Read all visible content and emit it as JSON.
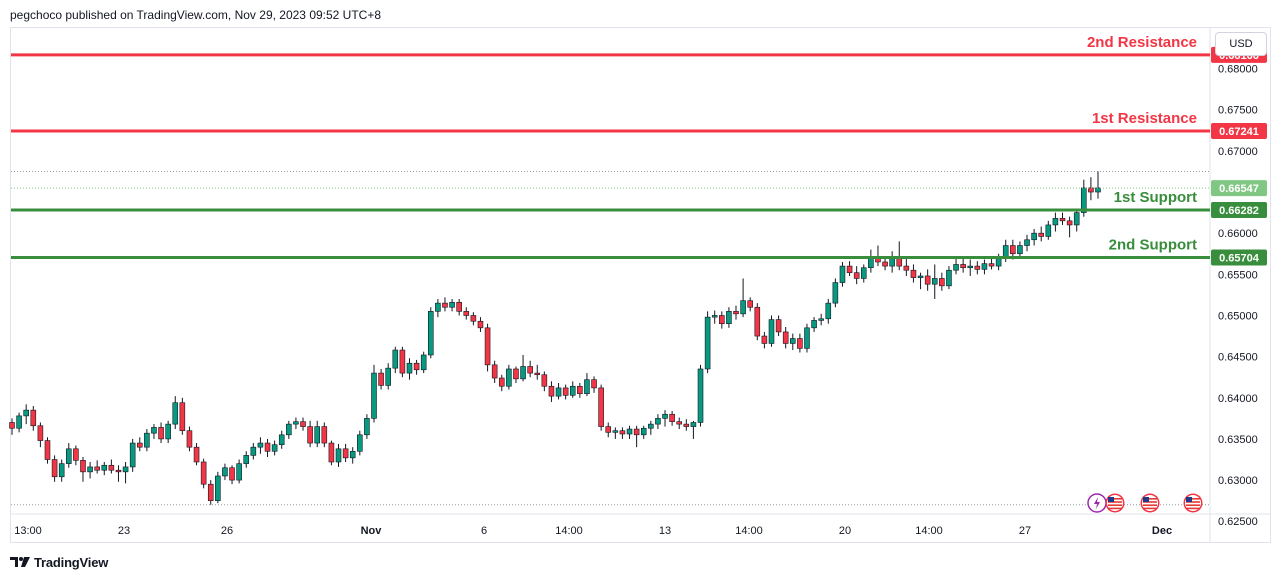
{
  "header": {
    "publisher_line": "pegchoco published on TradingView.com, Nov 29, 2023 09:52 UTC+8"
  },
  "currency_button": "USD",
  "footer": {
    "brand": "TradingView"
  },
  "colors": {
    "resistance": "#f23645",
    "support": "#388e3c",
    "up": "#089981",
    "down": "#f23645",
    "current_price": "#81c784"
  },
  "levels": [
    {
      "id": "2nd-resistance",
      "label": "2nd Resistance",
      "value": 0.68166,
      "price_tag": "0.68166",
      "kind": "resistance"
    },
    {
      "id": "1st-resistance",
      "label": "1st Resistance",
      "value": 0.67241,
      "price_tag": "0.67241",
      "kind": "resistance"
    },
    {
      "id": "1st-support",
      "label": "1st Support",
      "value": 0.66282,
      "price_tag": "0.66282",
      "kind": "support"
    },
    {
      "id": "2nd-support",
      "label": "2nd Support",
      "value": 0.65704,
      "price_tag": "0.65704",
      "kind": "support"
    }
  ],
  "current_price": {
    "value": 0.66547,
    "tag": "0.66547"
  },
  "chart_data": {
    "type": "candlestick",
    "y_axis": {
      "ticks": [
        "0.68000",
        "0.67500",
        "0.67000",
        "0.66500",
        "0.66000",
        "0.65500",
        "0.65000",
        "0.64500",
        "0.64000",
        "0.63500",
        "0.63000",
        "0.62500"
      ],
      "ylim": [
        0.6243,
        0.6859
      ]
    },
    "x_axis": {
      "ticks": [
        "13:00",
        "23",
        "26",
        "Nov",
        "6",
        "14:00",
        "13",
        "14:00",
        "20",
        "14:00",
        "27",
        "Dec"
      ]
    },
    "grid": false,
    "candles": [
      [
        0.637,
        0.6375,
        0.6355,
        0.6363
      ],
      [
        0.6363,
        0.6382,
        0.6358,
        0.6378
      ],
      [
        0.6378,
        0.6392,
        0.6368,
        0.6385
      ],
      [
        0.6385,
        0.639,
        0.636,
        0.6366
      ],
      [
        0.6366,
        0.637,
        0.634,
        0.6348
      ],
      [
        0.6348,
        0.6352,
        0.632,
        0.6325
      ],
      [
        0.6325,
        0.633,
        0.6298,
        0.6304
      ],
      [
        0.6304,
        0.6325,
        0.6298,
        0.632
      ],
      [
        0.632,
        0.6345,
        0.6315,
        0.6338
      ],
      [
        0.6338,
        0.6342,
        0.6318,
        0.6324
      ],
      [
        0.6324,
        0.6328,
        0.6298,
        0.631
      ],
      [
        0.631,
        0.6322,
        0.6302,
        0.6316
      ],
      [
        0.6316,
        0.6324,
        0.6308,
        0.6312
      ],
      [
        0.6312,
        0.6322,
        0.6306,
        0.6318
      ],
      [
        0.6318,
        0.6325,
        0.6308,
        0.6312
      ],
      [
        0.6312,
        0.6318,
        0.6298,
        0.631
      ],
      [
        0.631,
        0.6322,
        0.6296,
        0.6316
      ],
      [
        0.6316,
        0.635,
        0.631,
        0.6345
      ],
      [
        0.6345,
        0.6352,
        0.6335,
        0.634
      ],
      [
        0.634,
        0.6362,
        0.6335,
        0.6357
      ],
      [
        0.6357,
        0.6368,
        0.635,
        0.6364
      ],
      [
        0.6364,
        0.637,
        0.6345,
        0.635
      ],
      [
        0.635,
        0.6372,
        0.6345,
        0.6368
      ],
      [
        0.6368,
        0.6402,
        0.6362,
        0.6394
      ],
      [
        0.6394,
        0.64,
        0.6355,
        0.636
      ],
      [
        0.636,
        0.6365,
        0.6335,
        0.634
      ],
      [
        0.634,
        0.6345,
        0.6318,
        0.6322
      ],
      [
        0.6322,
        0.6326,
        0.629,
        0.6295
      ],
      [
        0.6295,
        0.63,
        0.627,
        0.6275
      ],
      [
        0.6275,
        0.631,
        0.6272,
        0.6305
      ],
      [
        0.6305,
        0.632,
        0.63,
        0.6315
      ],
      [
        0.6315,
        0.6318,
        0.6295,
        0.63
      ],
      [
        0.63,
        0.6325,
        0.6296,
        0.632
      ],
      [
        0.632,
        0.6335,
        0.6315,
        0.633
      ],
      [
        0.633,
        0.6345,
        0.6325,
        0.634
      ],
      [
        0.634,
        0.6352,
        0.6332,
        0.6345
      ],
      [
        0.6345,
        0.635,
        0.6328,
        0.6335
      ],
      [
        0.6335,
        0.6348,
        0.633,
        0.6343
      ],
      [
        0.6343,
        0.636,
        0.6338,
        0.6355
      ],
      [
        0.6355,
        0.6372,
        0.635,
        0.6368
      ],
      [
        0.6368,
        0.6376,
        0.6362,
        0.6371
      ],
      [
        0.6371,
        0.6376,
        0.636,
        0.6365
      ],
      [
        0.6365,
        0.6372,
        0.634,
        0.6345
      ],
      [
        0.6345,
        0.6372,
        0.634,
        0.6365
      ],
      [
        0.6365,
        0.637,
        0.634,
        0.6345
      ],
      [
        0.6345,
        0.6348,
        0.6318,
        0.6322
      ],
      [
        0.6322,
        0.6344,
        0.6316,
        0.6338
      ],
      [
        0.6338,
        0.6344,
        0.6322,
        0.6327
      ],
      [
        0.6327,
        0.634,
        0.632,
        0.6335
      ],
      [
        0.6335,
        0.636,
        0.633,
        0.6355
      ],
      [
        0.6355,
        0.638,
        0.635,
        0.6375
      ],
      [
        0.6375,
        0.644,
        0.637,
        0.643
      ],
      [
        0.643,
        0.6435,
        0.641,
        0.6415
      ],
      [
        0.6415,
        0.6442,
        0.641,
        0.6436
      ],
      [
        0.6436,
        0.6462,
        0.643,
        0.6458
      ],
      [
        0.6458,
        0.6462,
        0.6425,
        0.643
      ],
      [
        0.643,
        0.6448,
        0.6422,
        0.6442
      ],
      [
        0.6442,
        0.6446,
        0.6428,
        0.6434
      ],
      [
        0.6434,
        0.6456,
        0.643,
        0.6452
      ],
      [
        0.6452,
        0.651,
        0.6448,
        0.6505
      ],
      [
        0.6505,
        0.652,
        0.6498,
        0.6515
      ],
      [
        0.6515,
        0.6522,
        0.6505,
        0.651
      ],
      [
        0.651,
        0.652,
        0.6505,
        0.6516
      ],
      [
        0.6516,
        0.652,
        0.65,
        0.6505
      ],
      [
        0.6505,
        0.651,
        0.6495,
        0.65
      ],
      [
        0.65,
        0.6504,
        0.6488,
        0.6493
      ],
      [
        0.6493,
        0.6498,
        0.648,
        0.6485
      ],
      [
        0.6485,
        0.649,
        0.6432,
        0.644
      ],
      [
        0.644,
        0.6445,
        0.6418,
        0.6424
      ],
      [
        0.6424,
        0.6428,
        0.6408,
        0.6414
      ],
      [
        0.6414,
        0.644,
        0.641,
        0.6435
      ],
      [
        0.6435,
        0.6438,
        0.6418,
        0.6423
      ],
      [
        0.6423,
        0.6452,
        0.642,
        0.6438
      ],
      [
        0.6438,
        0.6445,
        0.6425,
        0.643
      ],
      [
        0.643,
        0.644,
        0.6422,
        0.6428
      ],
      [
        0.6428,
        0.6432,
        0.6408,
        0.6414
      ],
      [
        0.6414,
        0.642,
        0.6395,
        0.6402
      ],
      [
        0.6402,
        0.6418,
        0.6398,
        0.6412
      ],
      [
        0.6412,
        0.6416,
        0.6398,
        0.6403
      ],
      [
        0.6403,
        0.642,
        0.64,
        0.6414
      ],
      [
        0.6414,
        0.6418,
        0.64,
        0.6405
      ],
      [
        0.6405,
        0.643,
        0.6402,
        0.6422
      ],
      [
        0.6422,
        0.6426,
        0.6406,
        0.6412
      ],
      [
        0.6412,
        0.6416,
        0.636,
        0.6365
      ],
      [
        0.6365,
        0.637,
        0.6352,
        0.6358
      ],
      [
        0.6358,
        0.6364,
        0.635,
        0.636
      ],
      [
        0.636,
        0.6364,
        0.635,
        0.6356
      ],
      [
        0.6356,
        0.6366,
        0.635,
        0.6362
      ],
      [
        0.6362,
        0.6366,
        0.634,
        0.6355
      ],
      [
        0.6355,
        0.6366,
        0.635,
        0.6363
      ],
      [
        0.6363,
        0.6372,
        0.6355,
        0.6368
      ],
      [
        0.6368,
        0.638,
        0.6362,
        0.6375
      ],
      [
        0.6375,
        0.6385,
        0.6365,
        0.638
      ],
      [
        0.638,
        0.6384,
        0.6366,
        0.6371
      ],
      [
        0.6371,
        0.6376,
        0.6362,
        0.6368
      ],
      [
        0.6368,
        0.6374,
        0.636,
        0.6365
      ],
      [
        0.6365,
        0.6372,
        0.635,
        0.637
      ],
      [
        0.637,
        0.644,
        0.6365,
        0.6435
      ],
      [
        0.6435,
        0.6505,
        0.643,
        0.6498
      ],
      [
        0.6498,
        0.6506,
        0.649,
        0.65
      ],
      [
        0.65,
        0.6505,
        0.6484,
        0.649
      ],
      [
        0.649,
        0.651,
        0.6485,
        0.6505
      ],
      [
        0.6505,
        0.6512,
        0.6495,
        0.6502
      ],
      [
        0.6502,
        0.6545,
        0.6498,
        0.6518
      ],
      [
        0.6518,
        0.6522,
        0.6505,
        0.651
      ],
      [
        0.651,
        0.6515,
        0.647,
        0.6475
      ],
      [
        0.6475,
        0.648,
        0.646,
        0.6466
      ],
      [
        0.6466,
        0.65,
        0.6462,
        0.6495
      ],
      [
        0.6495,
        0.65,
        0.6475,
        0.648
      ],
      [
        0.648,
        0.6486,
        0.646,
        0.6466
      ],
      [
        0.6466,
        0.6478,
        0.6458,
        0.6472
      ],
      [
        0.6472,
        0.6478,
        0.6455,
        0.646
      ],
      [
        0.646,
        0.649,
        0.6455,
        0.6485
      ],
      [
        0.6485,
        0.6498,
        0.648,
        0.6494
      ],
      [
        0.6494,
        0.6502,
        0.6488,
        0.6496
      ],
      [
        0.6496,
        0.652,
        0.649,
        0.6515
      ],
      [
        0.6515,
        0.6545,
        0.651,
        0.654
      ],
      [
        0.654,
        0.6565,
        0.6535,
        0.656
      ],
      [
        0.656,
        0.6566,
        0.6548,
        0.6552
      ],
      [
        0.6552,
        0.656,
        0.6538,
        0.6545
      ],
      [
        0.6545,
        0.6562,
        0.654,
        0.6558
      ],
      [
        0.6558,
        0.658,
        0.6552,
        0.657
      ],
      [
        0.657,
        0.6585,
        0.656,
        0.6565
      ],
      [
        0.6565,
        0.6572,
        0.6555,
        0.656
      ],
      [
        0.656,
        0.6578,
        0.6552,
        0.657
      ],
      [
        0.657,
        0.659,
        0.6555,
        0.656
      ],
      [
        0.656,
        0.657,
        0.6548,
        0.6555
      ],
      [
        0.6555,
        0.6562,
        0.654,
        0.6546
      ],
      [
        0.6546,
        0.6552,
        0.6532,
        0.6548
      ],
      [
        0.6548,
        0.6556,
        0.653,
        0.6538
      ],
      [
        0.6538,
        0.6562,
        0.652,
        0.6545
      ],
      [
        0.6545,
        0.6552,
        0.653,
        0.6536
      ],
      [
        0.6536,
        0.656,
        0.6532,
        0.6555
      ],
      [
        0.6555,
        0.6572,
        0.655,
        0.6562
      ],
      [
        0.6562,
        0.657,
        0.6552,
        0.6558
      ],
      [
        0.6558,
        0.6568,
        0.6548,
        0.656
      ],
      [
        0.656,
        0.6566,
        0.655,
        0.6556
      ],
      [
        0.6556,
        0.6568,
        0.655,
        0.6563
      ],
      [
        0.6563,
        0.6572,
        0.6556,
        0.656
      ],
      [
        0.656,
        0.6575,
        0.6555,
        0.657
      ],
      [
        0.657,
        0.6592,
        0.6565,
        0.6585
      ],
      [
        0.6585,
        0.6592,
        0.6568,
        0.6575
      ],
      [
        0.6575,
        0.659,
        0.6572,
        0.6585
      ],
      [
        0.6585,
        0.6598,
        0.6578,
        0.6592
      ],
      [
        0.6592,
        0.6605,
        0.6585,
        0.66
      ],
      [
        0.66,
        0.6608,
        0.659,
        0.6596
      ],
      [
        0.6596,
        0.6615,
        0.6592,
        0.661
      ],
      [
        0.661,
        0.6625,
        0.6602,
        0.6618
      ],
      [
        0.6618,
        0.6625,
        0.661,
        0.6615
      ],
      [
        0.6615,
        0.662,
        0.6595,
        0.661
      ],
      [
        0.661,
        0.663,
        0.6602,
        0.6625
      ],
      [
        0.6625,
        0.6665,
        0.662,
        0.6655
      ],
      [
        0.6655,
        0.6668,
        0.664,
        0.665
      ],
      [
        0.665,
        0.6675,
        0.6642,
        0.6655
      ]
    ]
  },
  "event_icons": [
    "lightning-icon",
    "us-flag-icon",
    "us-flag-icon",
    "us-flag-icon"
  ]
}
